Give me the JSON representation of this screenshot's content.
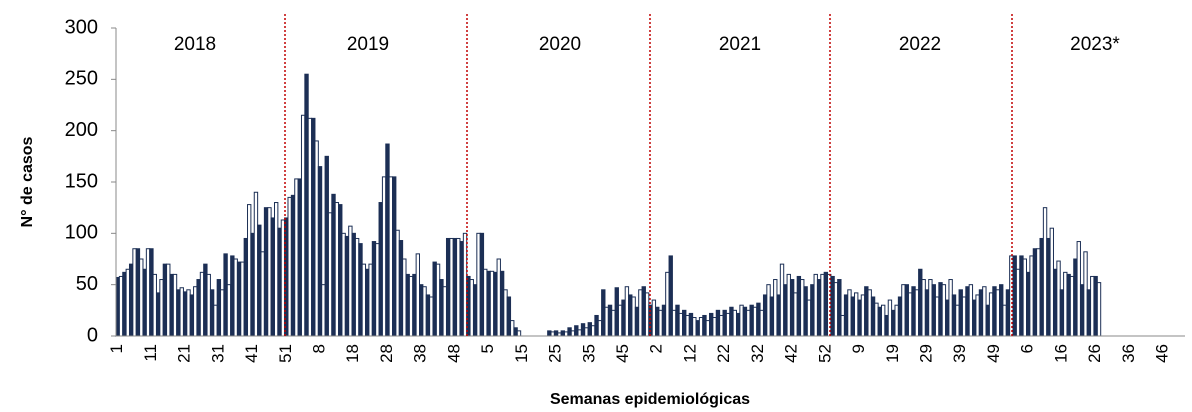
{
  "chart_data": {
    "type": "bar",
    "annotations": [
      "2018",
      "2019",
      "2020",
      "2021",
      "2022",
      "2023*"
    ],
    "xlabel": "Semanas epidemiológicas",
    "ylabel": "N° de casos",
    "color": "#1c2f55",
    "categories": [
      "1",
      null,
      null,
      null,
      null,
      null,
      null,
      null,
      null,
      null,
      "11",
      null,
      null,
      null,
      null,
      null,
      null,
      null,
      null,
      null,
      "21",
      null,
      null,
      null,
      null,
      null,
      null,
      null,
      null,
      null,
      "31",
      null,
      null,
      null,
      null,
      null,
      null,
      null,
      null,
      null,
      "41",
      null,
      null,
      null,
      null,
      null,
      null,
      null,
      null,
      null,
      "51",
      null,
      null,
      null,
      null,
      null,
      null,
      null,
      null,
      null,
      "8",
      null,
      null,
      null,
      null,
      null,
      null,
      null,
      null,
      null,
      "18",
      null,
      null,
      null,
      null,
      null,
      null,
      null,
      null,
      null,
      "28",
      null,
      null,
      null,
      null,
      null,
      null,
      null,
      null,
      null,
      "38",
      null,
      null,
      null,
      null,
      null,
      null,
      null,
      null,
      null,
      "48",
      null,
      null,
      null,
      null,
      null,
      null,
      null,
      null,
      null,
      "5",
      null,
      null,
      null,
      null,
      null,
      null,
      null,
      null,
      null,
      "15",
      null,
      null,
      null,
      null,
      null,
      null,
      null,
      null,
      null,
      "25",
      null,
      null,
      null,
      null,
      null,
      null,
      null,
      null,
      null,
      "35",
      null,
      null,
      null,
      null,
      null,
      null,
      null,
      null,
      null,
      "45",
      null,
      null,
      null,
      null,
      null,
      null,
      null,
      null,
      null,
      "2",
      null,
      null,
      null,
      null,
      null,
      null,
      null,
      null,
      null,
      "12",
      null,
      null,
      null,
      null,
      null,
      null,
      null,
      null,
      null,
      "22",
      null,
      null,
      null,
      null,
      null,
      null,
      null,
      null,
      null,
      "32",
      null,
      null,
      null,
      null,
      null,
      null,
      null,
      null,
      null,
      "42",
      null,
      null,
      null,
      null,
      null,
      null,
      null,
      null,
      null,
      "52",
      null,
      null,
      null,
      null,
      null,
      null,
      null,
      null,
      null,
      "9",
      null,
      null,
      null,
      null,
      null,
      null,
      null,
      null,
      null,
      "19",
      null,
      null,
      null,
      null,
      null,
      null,
      null,
      null,
      null,
      "29",
      null,
      null,
      null,
      null,
      null,
      null,
      null,
      null,
      null,
      "39",
      null,
      null,
      null,
      null,
      null,
      null,
      null,
      null,
      null,
      "49",
      null,
      null,
      null,
      null,
      null,
      null,
      null,
      null,
      null,
      "6",
      null,
      null,
      null,
      null,
      null,
      null,
      null,
      null,
      null,
      "16",
      null,
      null,
      null,
      null,
      null,
      null,
      null,
      null,
      null,
      "26",
      null,
      null,
      null,
      null,
      null,
      null,
      null,
      null,
      null,
      "36",
      null,
      null,
      null,
      null,
      null,
      null,
      null,
      null,
      null,
      "46",
      null,
      null,
      null,
      null,
      null,
      null
    ],
    "values": [
      57,
      58,
      62,
      65,
      70,
      85,
      85,
      75,
      65,
      85,
      85,
      60,
      42,
      55,
      70,
      70,
      60,
      60,
      45,
      47,
      43,
      45,
      40,
      48,
      55,
      62,
      70,
      60,
      45,
      30,
      55,
      45,
      80,
      50,
      78,
      75,
      72,
      72,
      95,
      128,
      100,
      140,
      108,
      82,
      125,
      125,
      115,
      130,
      105,
      113,
      115,
      135,
      137,
      153,
      153,
      215,
      255,
      212,
      212,
      190,
      165,
      50,
      175,
      120,
      138,
      130,
      128,
      100,
      97,
      107,
      100,
      95,
      90,
      70,
      65,
      70,
      92,
      90,
      130,
      155,
      187,
      155,
      155,
      103,
      93,
      75,
      60,
      58,
      60,
      80,
      50,
      48,
      40,
      38,
      72,
      70,
      55,
      48,
      95,
      95,
      95,
      95,
      92,
      100,
      58,
      55,
      50,
      100,
      100,
      65,
      63,
      63,
      62,
      75,
      63,
      45,
      38,
      15,
      8,
      5,
      null,
      null,
      null,
      null,
      null,
      null,
      null,
      null,
      5,
      4,
      5,
      3,
      5,
      4,
      8,
      5,
      10,
      6,
      12,
      8,
      13,
      10,
      20,
      15,
      45,
      28,
      30,
      25,
      47,
      30,
      35,
      48,
      40,
      38,
      28,
      45,
      48,
      42,
      30,
      35,
      28,
      25,
      30,
      62,
      78,
      25,
      30,
      22,
      25,
      20,
      22,
      18,
      15,
      18,
      20,
      15,
      22,
      18,
      25,
      20,
      25,
      22,
      28,
      25,
      22,
      30,
      28,
      25,
      30,
      28,
      32,
      25,
      40,
      50,
      38,
      55,
      40,
      70,
      50,
      60,
      55,
      42,
      58,
      55,
      48,
      35,
      50,
      60,
      55,
      60,
      62,
      60,
      58,
      52,
      55,
      20,
      40,
      45,
      38,
      42,
      35,
      40,
      48,
      45,
      38,
      32,
      28,
      30,
      20,
      35,
      25,
      30,
      38,
      50,
      50,
      42,
      48,
      45,
      65,
      55,
      45,
      55,
      50,
      38,
      52,
      50,
      35,
      55,
      40,
      30,
      45,
      38,
      48,
      50,
      35,
      40,
      45,
      48,
      30,
      42,
      48,
      45,
      50,
      30,
      45,
      78,
      78,
      65,
      78,
      75,
      62,
      78,
      85,
      85,
      95,
      125,
      95,
      105,
      65,
      73,
      45,
      62,
      60,
      58,
      75,
      92,
      50,
      82,
      45,
      58,
      58,
      52,
      null,
      null,
      null,
      null,
      null,
      null,
      null,
      null,
      null,
      null,
      null,
      null,
      null,
      null,
      null,
      null,
      null,
      null,
      null,
      null,
      null,
      null,
      null,
      null,
      null
    ],
    "ylim": [
      0,
      300
    ],
    "yticks": [
      0,
      50,
      100,
      150,
      200,
      250,
      300
    ]
  }
}
